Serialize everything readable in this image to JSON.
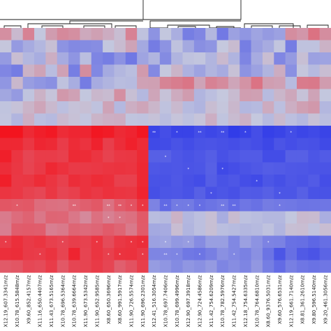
{
  "chart_data": {
    "type": "heatmap",
    "title": "",
    "xlabel": "",
    "ylabel": "",
    "dendrogram": "top",
    "legend": "none",
    "colors": {
      "low": "#2e39e8",
      "mid": "#c5c8de",
      "high": "#f4101a"
    },
    "value_range": [
      -1,
      1
    ],
    "x_tick_labels": [
      "X12.19_607.3341m/z",
      "X10.78_615.5848m/z",
      "X9.60_852.4157m/z",
      "X11.16_650.4407m/z",
      "X11.43_673.5165m/z",
      "X10.78_696.5364m/z",
      "X10.78_639.6664m/z",
      "X11.90_673.5342m/z",
      "X11.90_652.9585m/z",
      "X8.60_650.3696m/z",
      "X8.60_991.5917m/z",
      "X11.90_726.5574m/z",
      "X11.90_696.2301m/z",
      "X12.41_516.3054m/z",
      "X10.78_697.7406m/z",
      "X10.78_699.4996m/z",
      "X12.90_697.3918m/z",
      "X12.90_724.4586m/z",
      "X11.42_754.6209m/z",
      "X10.78_782.5976m/z",
      "X11.42_754.5427m/z",
      "X12.18_754.6335m/z",
      "X10.78_764.6810m/z",
      "X8.60_9376.5031m/z",
      "X9.60_576.6531m/z",
      "X12.19_661.7140m/z",
      "X8.81_361.2610m/z",
      "X9.80_596.5140m/z",
      "X9.20_461.3056m/z"
    ],
    "row_count": 20,
    "cells": [
      [
        0.31,
        0.08,
        0.38,
        -0.01,
        0.24,
        0.34,
        0.31,
        0.17,
        0.22,
        0.15,
        0.06,
        0.38,
        -0.04,
        -0.37,
        -0.01,
        -0.18,
        -0.52,
        -0.46,
        -0.12,
        -0.55,
        -0.27,
        -0.35,
        -0.25,
        -0.32,
        -0.27,
        0.32,
        0.27,
        0.47,
        0.32
      ],
      [
        0.01,
        -0.32,
        -0.2,
        -0.12,
        0.05,
        -0.37,
        -0.44,
        -0.43,
        -0.41,
        -0.01,
        0.07,
        0.2,
        -0.22,
        -0.53,
        -0.37,
        -0.04,
        -0.22,
        -0.4,
        -0.36,
        0.0,
        0.07,
        -0.52,
        -0.28,
        -0.2,
        -0.02,
        -0.53,
        -0.04,
        -0.04,
        0.12
      ],
      [
        -0.32,
        0.06,
        -0.12,
        -0.19,
        0.14,
        -0.2,
        -0.36,
        -0.07,
        -0.47,
        -0.52,
        -0.38,
        -0.56,
        -0.25,
        -0.14,
        -0.43,
        -0.14,
        -0.04,
        -0.02,
        -0.13,
        0.08,
        -0.14,
        -0.47,
        -0.2,
        0.06,
        -0.46,
        -0.32,
        0.05,
        -0.27,
        -0.26
      ],
      [
        -0.46,
        -0.53,
        0.12,
        0.2,
        -0.08,
        0.21,
        -0.52,
        0.32,
        -0.45,
        -0.21,
        -0.12,
        -0.07,
        0.25,
        -0.44,
        0.0,
        0.11,
        -0.16,
        -0.26,
        -0.13,
        -0.2,
        0.04,
        -0.37,
        -0.27,
        -0.14,
        0.15,
        -0.39,
        0.01,
        -0.1,
        0.06
      ],
      [
        -0.35,
        0.09,
        -0.3,
        -0.35,
        -0.39,
        -0.04,
        -0.19,
        -0.53,
        -0.2,
        -0.14,
        -0.08,
        -0.09,
        0.21,
        0.22,
        0.37,
        0.41,
        0.45,
        0.2,
        0.38,
        0.33,
        0.19,
        0.29,
        0.46,
        0.23,
        0.21,
        -0.09,
        0.42,
        0.43,
        0.24
      ],
      [
        -0.23,
        -0.32,
        -0.03,
        0.12,
        0.02,
        0.26,
        0.21,
        -0.01,
        0.09,
        0.07,
        0.31,
        0.05,
        -0.11,
        0.19,
        0.03,
        0.16,
        0.24,
        -0.13,
        -0.06,
        0.0,
        0.07,
        0.23,
        0.22,
        -0.09,
        0.1,
        0.18,
        0.03,
        0.2,
        -0.01
      ],
      [
        -0.03,
        0.03,
        0.11,
        0.19,
        0.08,
        -0.06,
        0.03,
        0.05,
        -0.04,
        0.2,
        -0.11,
        0.14,
        0.19,
        0.1,
        -0.04,
        0.08,
        -0.1,
        -0.14,
        0.06,
        0.01,
        0.09,
        -0.12,
        -0.1,
        0.16,
        -0.06,
        0.14,
        0.22,
        0.26,
        -0.12
      ],
      [
        -0.02,
        -0.13,
        0.14,
        -0.07,
        -0.1,
        0.08,
        0.04,
        -0.02,
        0.11,
        0.14,
        0.15,
        -0.03,
        -0.04,
        0.03,
        -0.08,
        0.02,
        -0.05,
        0.02,
        0.14,
        -0.03,
        0.07,
        0.13,
        0.0,
        -0.1,
        0.08,
        -0.06,
        -0.11,
        0.04,
        -0.07
      ],
      [
        0.98,
        0.98,
        0.86,
        0.92,
        0.95,
        0.85,
        0.88,
        0.88,
        0.96,
        0.94,
        0.86,
        0.89,
        0.96,
        -0.92,
        -0.85,
        -0.93,
        -0.93,
        -0.86,
        -0.9,
        -0.87,
        -0.98,
        -0.94,
        -0.85,
        -0.95,
        -0.92,
        -0.86,
        -0.91,
        -0.88,
        -0.92
      ],
      [
        0.87,
        0.87,
        0.79,
        0.88,
        0.86,
        0.76,
        0.85,
        0.81,
        0.9,
        0.75,
        0.84,
        0.91,
        0.85,
        -0.88,
        -0.87,
        -0.82,
        -0.86,
        -0.82,
        -0.81,
        -0.83,
        -0.85,
        -0.82,
        -0.85,
        -0.9,
        -0.81,
        -0.85,
        -0.82,
        -0.83,
        -0.88
      ],
      [
        0.92,
        0.8,
        0.71,
        0.76,
        0.76,
        0.74,
        0.86,
        0.85,
        0.8,
        0.73,
        0.78,
        0.79,
        0.86,
        -0.73,
        -0.72,
        -0.79,
        -0.82,
        -0.79,
        -0.74,
        -0.83,
        -0.79,
        -0.76,
        -0.76,
        -0.86,
        -0.86,
        -0.73,
        -0.73,
        -0.8,
        -0.76
      ],
      [
        0.84,
        0.79,
        0.72,
        0.77,
        0.87,
        0.82,
        0.77,
        0.77,
        0.78,
        0.8,
        0.81,
        0.8,
        0.87,
        -0.79,
        -0.8,
        -0.79,
        -0.81,
        -0.8,
        -0.73,
        -0.89,
        -0.85,
        -0.81,
        -0.78,
        -0.75,
        -0.76,
        -0.78,
        -0.79,
        -0.81,
        -0.81
      ],
      [
        0.92,
        0.78,
        0.79,
        0.85,
        0.8,
        0.74,
        0.84,
        0.81,
        0.85,
        0.83,
        0.74,
        0.74,
        0.87,
        -0.82,
        -0.82,
        -0.78,
        -0.83,
        -0.86,
        -0.74,
        -0.82,
        -0.79,
        -0.85,
        -0.88,
        -0.8,
        -0.84,
        -0.79,
        -0.81,
        -0.76,
        -0.85
      ],
      [
        0.8,
        0.78,
        0.73,
        0.7,
        0.79,
        0.71,
        0.74,
        0.81,
        0.78,
        0.82,
        0.8,
        0.79,
        0.89,
        -0.84,
        -0.8,
        -0.79,
        -0.82,
        -0.73,
        -0.83,
        -0.8,
        -0.83,
        -0.76,
        -0.77,
        -0.73,
        -0.8,
        -0.8,
        -0.73,
        -0.82,
        -0.82
      ],
      [
        0.62,
        0.6,
        0.61,
        0.5,
        0.48,
        0.47,
        0.53,
        0.57,
        0.61,
        0.47,
        0.59,
        0.64,
        0.79,
        -0.48,
        -0.66,
        -0.54,
        -0.54,
        -0.63,
        -0.59,
        -0.55,
        -0.65,
        -0.57,
        -0.61,
        -0.53,
        -0.55,
        -0.56,
        -0.59,
        -0.58,
        -0.57
      ],
      [
        0.42,
        0.5,
        0.55,
        0.44,
        0.54,
        0.53,
        0.44,
        0.34,
        0.48,
        0.39,
        0.45,
        0.48,
        0.6,
        -0.08,
        -0.1,
        0.12,
        -0.12,
        -0.06,
        0.05,
        -0.19,
        0.07,
        -0.05,
        -0.08,
        -0.11,
        -0.11,
        -0.01,
        0.08,
        0.07,
        -0.18
      ],
      [
        0.4,
        0.58,
        0.59,
        0.58,
        0.4,
        0.43,
        0.54,
        0.51,
        0.53,
        0.59,
        0.54,
        0.43,
        0.59,
        -0.22,
        -0.2,
        0.06,
        -0.13,
        -0.06,
        0.05,
        -0.07,
        -0.09,
        -0.12,
        -0.1,
        -0.04,
        -0.13,
        0.05,
        0.06,
        -0.04,
        0.06
      ],
      [
        0.76,
        0.83,
        0.77,
        0.8,
        0.74,
        0.71,
        0.75,
        0.73,
        0.8,
        0.68,
        0.78,
        0.81,
        0.84,
        -0.27,
        -0.25,
        -0.33,
        -0.3,
        -0.42,
        -0.29,
        -0.29,
        -0.45,
        -0.28,
        -0.37,
        -0.48,
        -0.49,
        -0.61,
        -0.62,
        -0.68,
        -0.62
      ],
      [
        0.83,
        0.84,
        0.77,
        0.76,
        0.81,
        0.72,
        0.89,
        0.72,
        0.8,
        0.74,
        0.81,
        0.82,
        0.77,
        -0.47,
        -0.46,
        -0.47,
        -0.56,
        -0.58,
        -0.51,
        -0.39,
        -0.45,
        -0.5,
        -0.39,
        -0.59,
        -0.8,
        -0.62,
        -0.77,
        -0.81,
        -0.7
      ],
      [
        0.6,
        0.62,
        0.7,
        0.68,
        0.76,
        0.61,
        0.71,
        0.72,
        0.77,
        0.71,
        0.57,
        0.64,
        0.75,
        -0.31,
        -0.35,
        -0.43,
        -0.35,
        -0.39,
        -0.32,
        -0.47,
        -0.41,
        -0.47,
        -0.34,
        -0.52,
        -0.65,
        -0.51,
        -0.57,
        -0.6,
        -0.57
      ]
    ],
    "cell_annotations": [
      {
        "row": 8,
        "col": 13,
        "text": "**"
      },
      {
        "row": 8,
        "col": 15,
        "text": "*"
      },
      {
        "row": 8,
        "col": 17,
        "text": "**"
      },
      {
        "row": 8,
        "col": 19,
        "text": "**"
      },
      {
        "row": 8,
        "col": 21,
        "text": "*"
      },
      {
        "row": 8,
        "col": 25,
        "text": "*"
      },
      {
        "row": 10,
        "col": 14,
        "text": "*"
      },
      {
        "row": 11,
        "col": 16,
        "text": "*"
      },
      {
        "row": 11,
        "col": 19,
        "text": "*"
      },
      {
        "row": 12,
        "col": 22,
        "text": "*"
      },
      {
        "row": 13,
        "col": 18,
        "text": "*"
      },
      {
        "row": 13,
        "col": 24,
        "text": "*"
      },
      {
        "row": 14,
        "col": 1,
        "text": "*"
      },
      {
        "row": 14,
        "col": 6,
        "text": "**"
      },
      {
        "row": 14,
        "col": 9,
        "text": "**"
      },
      {
        "row": 14,
        "col": 10,
        "text": "**"
      },
      {
        "row": 14,
        "col": 11,
        "text": "*"
      },
      {
        "row": 14,
        "col": 12,
        "text": "*"
      },
      {
        "row": 14,
        "col": 14,
        "text": "**"
      },
      {
        "row": 14,
        "col": 15,
        "text": "*"
      },
      {
        "row": 14,
        "col": 16,
        "text": "*"
      },
      {
        "row": 14,
        "col": 17,
        "text": "*"
      },
      {
        "row": 14,
        "col": 19,
        "text": "**"
      },
      {
        "row": 14,
        "col": 20,
        "text": "**"
      },
      {
        "row": 14,
        "col": 24,
        "text": "*"
      },
      {
        "row": 15,
        "col": 9,
        "text": "*"
      },
      {
        "row": 15,
        "col": 10,
        "text": "*"
      },
      {
        "row": 17,
        "col": 0,
        "text": "*"
      },
      {
        "row": 17,
        "col": 5,
        "text": "*"
      },
      {
        "row": 17,
        "col": 8,
        "text": "*"
      },
      {
        "row": 17,
        "col": 11,
        "text": "*"
      },
      {
        "row": 17,
        "col": 12,
        "text": "*"
      },
      {
        "row": 17,
        "col": 14,
        "text": "*"
      },
      {
        "row": 17,
        "col": 16,
        "text": "*"
      },
      {
        "row": 17,
        "col": 23,
        "text": "*"
      },
      {
        "row": 18,
        "col": 3,
        "text": "*"
      },
      {
        "row": 18,
        "col": 9,
        "text": "*"
      },
      {
        "row": 18,
        "col": 10,
        "text": "*"
      },
      {
        "row": 18,
        "col": 12,
        "text": "*"
      },
      {
        "row": 18,
        "col": 14,
        "text": "**"
      },
      {
        "row": 18,
        "col": 15,
        "text": "*"
      },
      {
        "row": 18,
        "col": 17,
        "text": "*"
      },
      {
        "row": 18,
        "col": 20,
        "text": "*"
      }
    ]
  }
}
